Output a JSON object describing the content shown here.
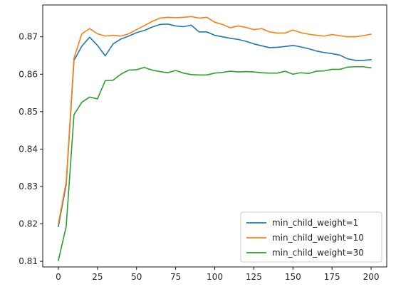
{
  "chart_data": {
    "type": "line",
    "title": "",
    "xlabel": "",
    "ylabel": "",
    "xlim": [
      -10,
      210
    ],
    "ylim": [
      0.8085,
      0.8785
    ],
    "xticks": [
      0,
      25,
      50,
      75,
      100,
      125,
      150,
      175,
      200
    ],
    "yticks": [
      0.81,
      0.82,
      0.83,
      0.84,
      0.85,
      0.86,
      0.87
    ],
    "ytick_labels": [
      "0.81",
      "0.82",
      "0.83",
      "0.84",
      "0.85",
      "0.86",
      "0.87"
    ],
    "grid": false,
    "legend_position": "bottom-right",
    "x": [
      0,
      5,
      10,
      15,
      20,
      25,
      30,
      35,
      40,
      45,
      50,
      55,
      60,
      65,
      70,
      75,
      80,
      85,
      90,
      95,
      100,
      105,
      110,
      115,
      120,
      125,
      130,
      135,
      140,
      145,
      150,
      155,
      160,
      165,
      170,
      175,
      180,
      185,
      190,
      195,
      200
    ],
    "series": [
      {
        "name": "min_child_weight=1",
        "color": "#1f77b4",
        "values": [
          0.8193,
          0.8305,
          0.8637,
          0.8675,
          0.8699,
          0.8677,
          0.8649,
          0.8681,
          0.8694,
          0.8702,
          0.8711,
          0.8717,
          0.8726,
          0.8733,
          0.8734,
          0.8729,
          0.8727,
          0.8731,
          0.8713,
          0.8713,
          0.8704,
          0.87,
          0.8696,
          0.8693,
          0.8688,
          0.8681,
          0.8676,
          0.8671,
          0.8672,
          0.8674,
          0.8677,
          0.8673,
          0.8668,
          0.8662,
          0.8658,
          0.8655,
          0.8651,
          0.8641,
          0.8637,
          0.8637,
          0.8639
        ]
      },
      {
        "name": "min_child_weight=10",
        "color": "#ff7f0e",
        "values": [
          0.82,
          0.8312,
          0.8643,
          0.8708,
          0.8722,
          0.8708,
          0.8702,
          0.8704,
          0.8702,
          0.8708,
          0.8719,
          0.873,
          0.8741,
          0.875,
          0.8752,
          0.8751,
          0.8752,
          0.8754,
          0.875,
          0.8752,
          0.8739,
          0.8733,
          0.8724,
          0.8729,
          0.8725,
          0.8719,
          0.8722,
          0.8713,
          0.871,
          0.871,
          0.8718,
          0.8711,
          0.8707,
          0.8704,
          0.8702,
          0.8706,
          0.8703,
          0.87,
          0.87,
          0.8703,
          0.8707
        ]
      },
      {
        "name": "min_child_weight=30",
        "color": "#2ca02c",
        "values": [
          0.8102,
          0.8193,
          0.8492,
          0.8525,
          0.8539,
          0.8534,
          0.8583,
          0.8584,
          0.86,
          0.8611,
          0.8612,
          0.8618,
          0.8611,
          0.8607,
          0.8604,
          0.861,
          0.8603,
          0.8599,
          0.8598,
          0.8598,
          0.8603,
          0.8605,
          0.8608,
          0.8606,
          0.8607,
          0.8606,
          0.8604,
          0.8603,
          0.8603,
          0.8608,
          0.86,
          0.8604,
          0.8602,
          0.8608,
          0.8609,
          0.8613,
          0.8613,
          0.8619,
          0.862,
          0.862,
          0.8617
        ]
      }
    ]
  }
}
